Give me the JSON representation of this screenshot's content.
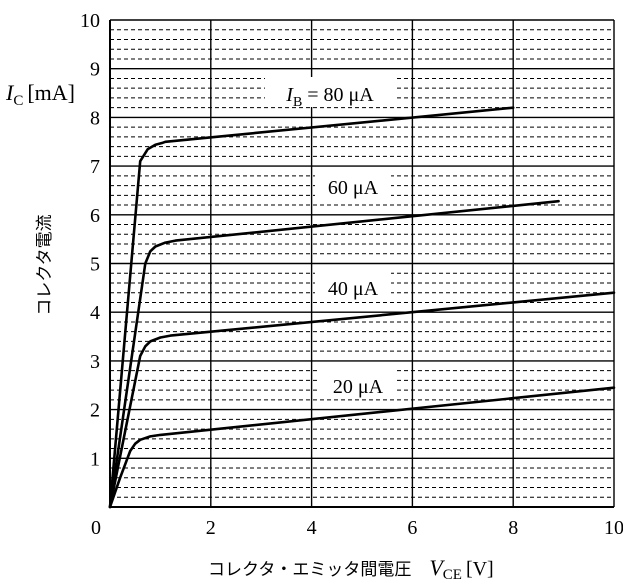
{
  "chart_data": {
    "type": "line",
    "title": "",
    "x_axis": {
      "label_jp": "コレクタ・エミッタ間電圧",
      "symbol": "V",
      "subscript": "CE",
      "unit": "[V]",
      "range": [
        0,
        10
      ],
      "ticks": [
        0,
        2,
        4,
        6,
        8,
        10
      ]
    },
    "y_axis": {
      "label_jp": "コレクタ電流",
      "symbol": "I",
      "subscript": "C",
      "unit": "[mA]",
      "range": [
        0,
        10
      ],
      "ticks": [
        1,
        2,
        3,
        4,
        5,
        6,
        7,
        8,
        9,
        10
      ]
    },
    "grid": true,
    "series": [
      {
        "name": "20 μA",
        "label_prefix": "",
        "x": [
          0,
          0.2,
          0.4,
          0.5,
          0.6,
          0.8,
          1.0,
          10
        ],
        "y": [
          0,
          0.6,
          1.15,
          1.3,
          1.38,
          1.45,
          1.48,
          2.45
        ]
      },
      {
        "name": "40 μA",
        "label_prefix": "",
        "x": [
          0,
          0.6,
          0.7,
          0.8,
          1.0,
          1.2,
          10
        ],
        "y": [
          0,
          3.1,
          3.3,
          3.4,
          3.48,
          3.52,
          4.4
        ]
      },
      {
        "name": "60 μA",
        "label_prefix": "",
        "x": [
          0,
          0.7,
          0.8,
          0.9,
          1.1,
          1.3,
          8.9
        ],
        "y": [
          0,
          5.0,
          5.25,
          5.35,
          5.43,
          5.47,
          6.28
        ]
      },
      {
        "name": "80 μA",
        "label_prefix": "I_B = ",
        "x": [
          0,
          0.6,
          0.75,
          0.9,
          1.05,
          1.1,
          8.0
        ],
        "y": [
          0,
          7.1,
          7.35,
          7.44,
          7.48,
          7.5,
          8.2
        ]
      }
    ]
  }
}
